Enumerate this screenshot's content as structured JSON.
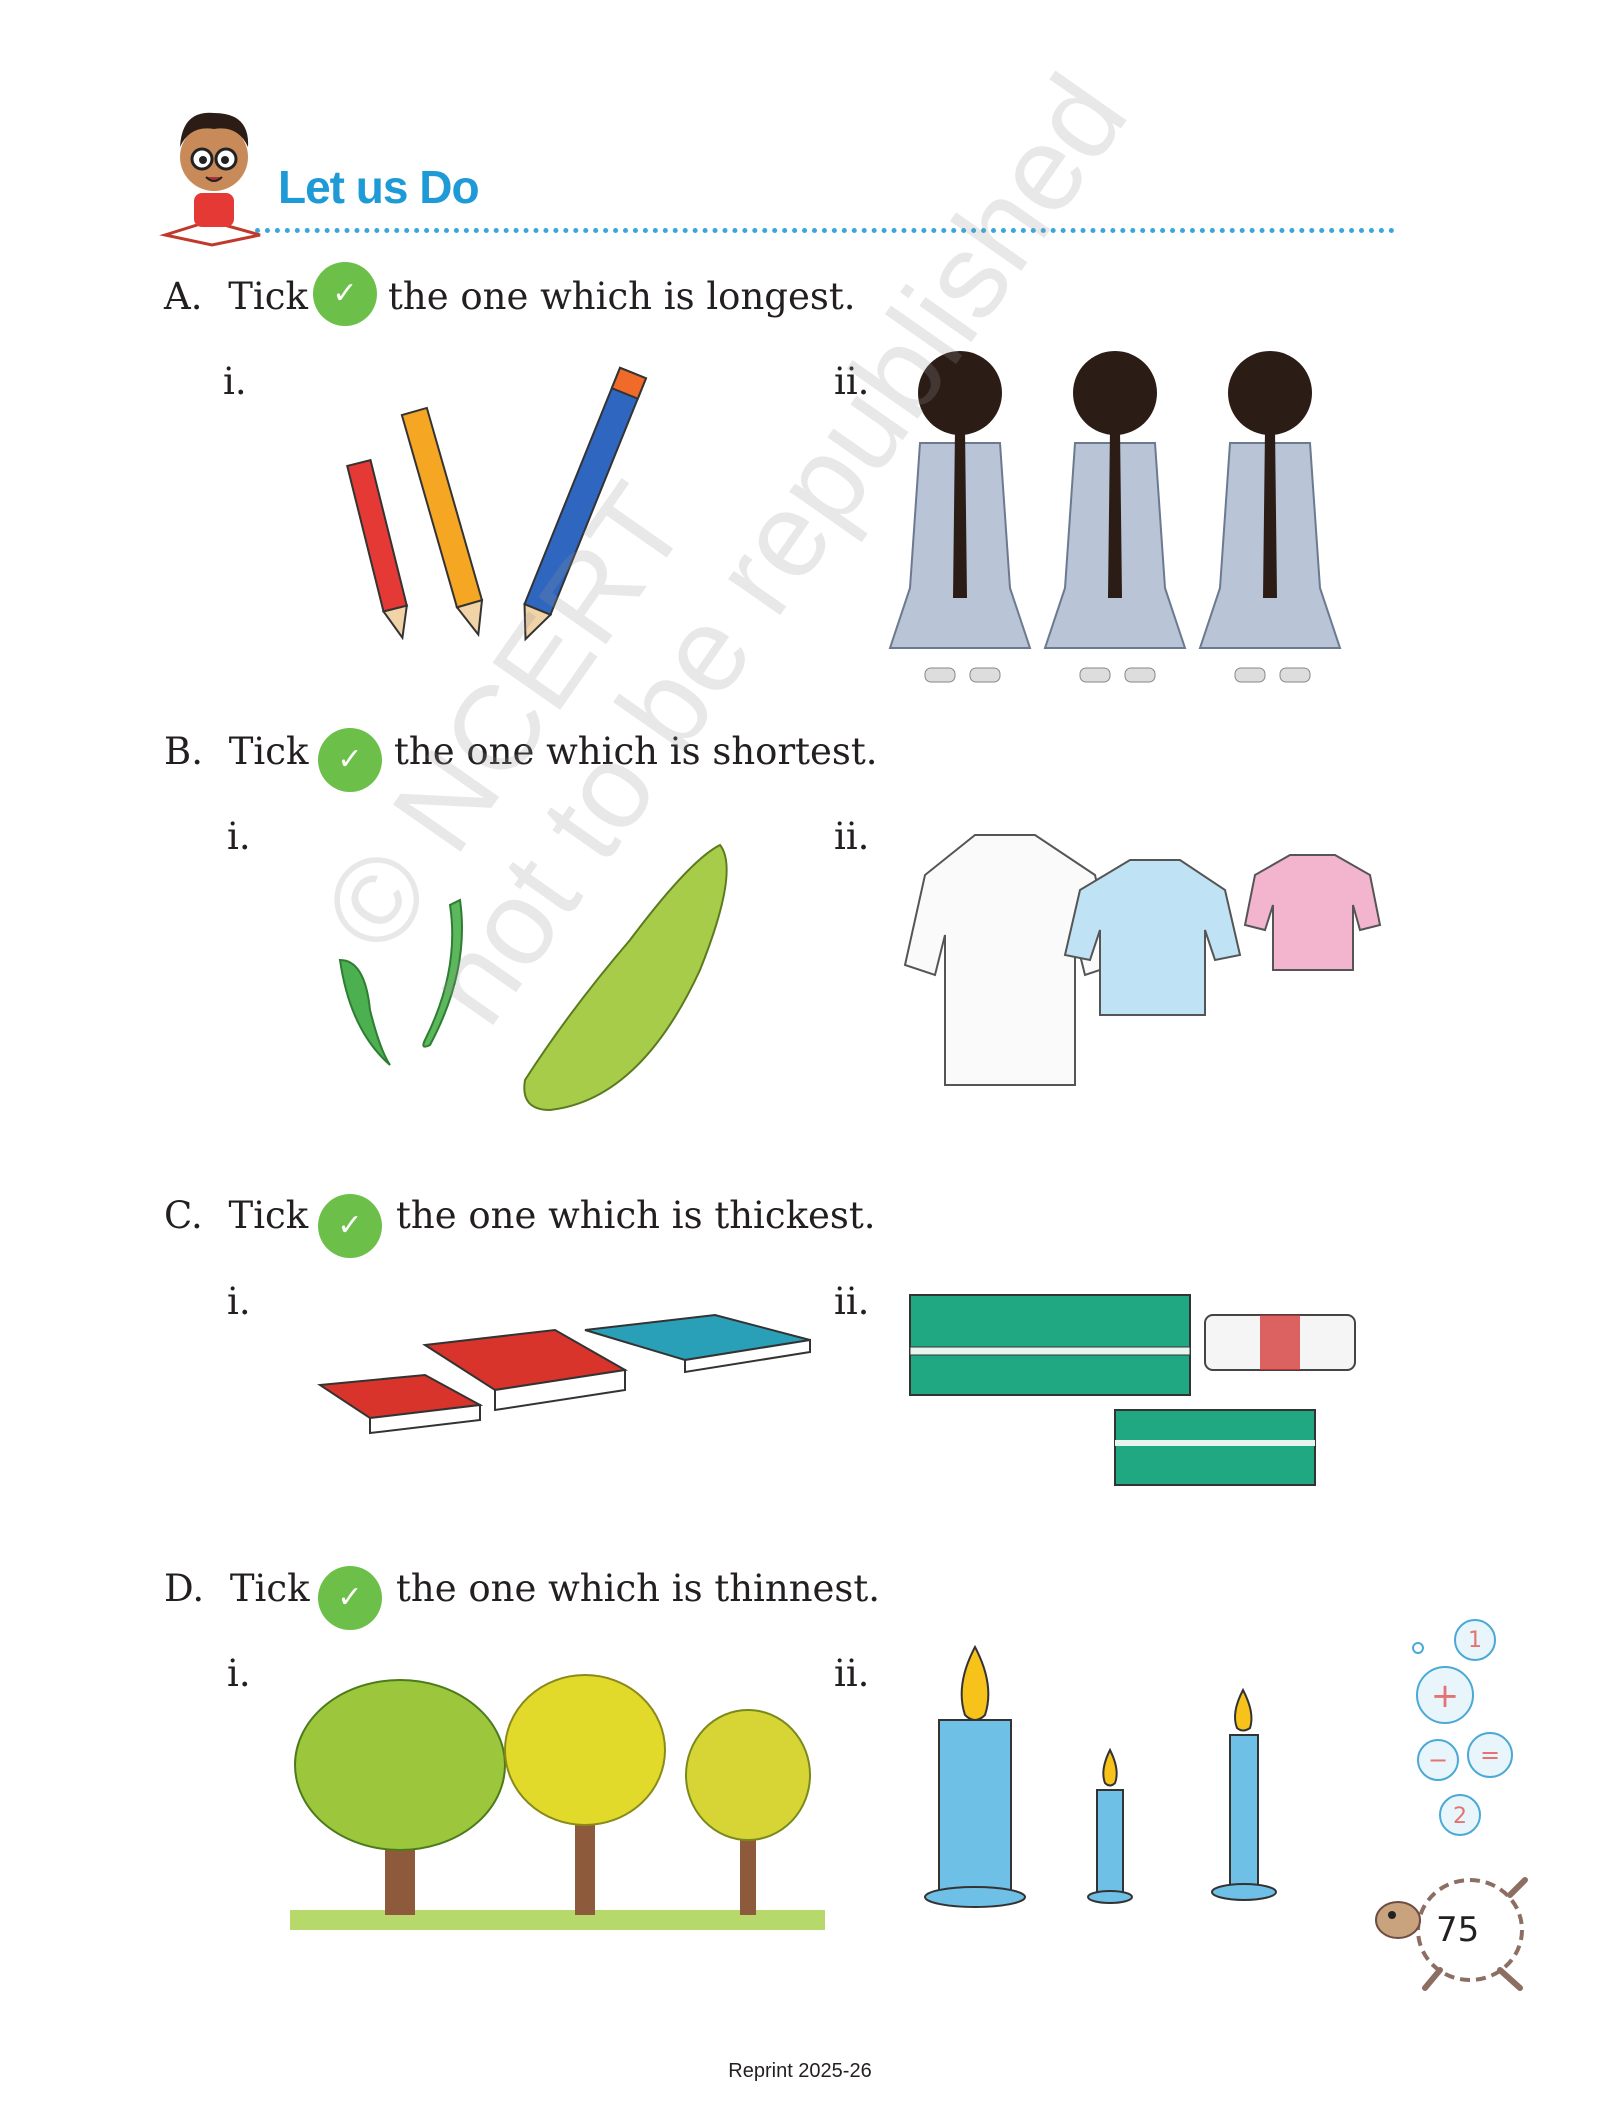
{
  "header": {
    "title": "Let us Do"
  },
  "questions": [
    {
      "letter": "A.",
      "tick_word": "Tick",
      "tick_glyph": "✓",
      "text": "the one which is longest.",
      "opt_i": "i.",
      "opt_ii": "ii."
    },
    {
      "letter": "B.",
      "tick_word": "Tick",
      "tick_glyph": "✓",
      "text": "the one which is shortest.",
      "opt_i": "i.",
      "opt_ii": "ii."
    },
    {
      "letter": "C.",
      "tick_word": "Tick",
      "tick_glyph": "✓",
      "text": "the one which is thickest.",
      "opt_i": "i.",
      "opt_ii": "ii."
    },
    {
      "letter": "D.",
      "tick_word": "Tick",
      "tick_glyph": "✓",
      "text": "the one which is thinnest.",
      "opt_i": "i.",
      "opt_ii": "ii."
    }
  ],
  "watermark": {
    "line1": "© NCERT",
    "line2": "not to be republished"
  },
  "page_number": "75",
  "footer": {
    "reprint": "Reprint 2025-26"
  },
  "colors": {
    "accent": "#1e9ad6",
    "tick_green": "#6cc04a"
  }
}
